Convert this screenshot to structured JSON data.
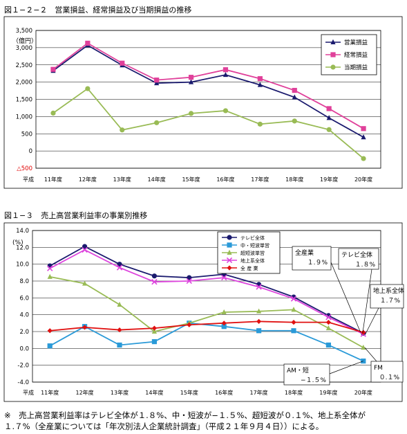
{
  "charts": [
    {
      "title": "図１−２−２　営業損益、経常損益及び当期損益の推移",
      "chart_data": {
        "type": "line",
        "unit_label": "（億円）",
        "x_prefix": "平成",
        "categories": [
          "11年度",
          "12年度",
          "13年度",
          "14年度",
          "15年度",
          "16年度",
          "17年度",
          "18年度",
          "19年度",
          "20年度"
        ],
        "ylim": [
          -500,
          3500
        ],
        "yticks": [
          {
            "v": 3500,
            "label": "3,500"
          },
          {
            "v": 3000,
            "label": "3,000"
          },
          {
            "v": 2500,
            "label": "2,500"
          },
          {
            "v": 2000,
            "label": "2,000"
          },
          {
            "v": 1500,
            "label": "1,500"
          },
          {
            "v": 1000,
            "label": "1,000"
          },
          {
            "v": 500,
            "label": "500"
          },
          {
            "v": 0,
            "label": "0"
          },
          {
            "v": -500,
            "label": "△500",
            "color": "#e00000"
          }
        ],
        "legend_position": "top-right",
        "series": [
          {
            "name": "営業損益",
            "color": "#1a1a6e",
            "marker": "triangle",
            "values": [
              2330,
              3070,
              2490,
              1970,
              2000,
              2210,
              1920,
              1560,
              960,
              400
            ]
          },
          {
            "name": "経常損益",
            "color": "#e0409a",
            "marker": "square",
            "values": [
              2370,
              3130,
              2550,
              2060,
              2140,
              2360,
              2100,
              1760,
              1230,
              650
            ]
          },
          {
            "name": "当期損益",
            "color": "#99bb55",
            "marker": "circle",
            "values": [
              1100,
              1810,
              610,
              820,
              1090,
              1170,
              780,
              870,
              620,
              -220
            ]
          }
        ]
      }
    },
    {
      "title": "図１−３　売上高営業利益率の事業別推移",
      "chart_data": {
        "type": "line",
        "unit_label": "(%)",
        "x_prefix": "平成",
        "categories": [
          "11年度",
          "12年度",
          "13年度",
          "14年度",
          "15年度",
          "16年度",
          "17年度",
          "18年度",
          "19年度",
          "20年度"
        ],
        "ylim": [
          -4,
          14
        ],
        "yticks": [
          {
            "v": 14,
            "label": "14.0"
          },
          {
            "v": 12,
            "label": "12.0"
          },
          {
            "v": 10,
            "label": "10.0"
          },
          {
            "v": 8,
            "label": "8.0"
          },
          {
            "v": 6,
            "label": "6.0"
          },
          {
            "v": 4,
            "label": "4.0"
          },
          {
            "v": 2,
            "label": "2.0"
          },
          {
            "v": 0,
            "label": "0.0"
          },
          {
            "v": -2,
            "label": "-2.0"
          },
          {
            "v": -4,
            "label": "-4.0"
          }
        ],
        "legend_position": "top-left",
        "series": [
          {
            "name": "テレビ全体",
            "color": "#1a1a6e",
            "marker": "circle",
            "values": [
              9.8,
              12.1,
              10.0,
              8.6,
              8.4,
              8.8,
              7.6,
              6.1,
              3.9,
              1.8
            ]
          },
          {
            "name": "中・短波単営",
            "color": "#2a9ad8",
            "marker": "square",
            "values": [
              0.3,
              2.6,
              0.4,
              0.8,
              3.0,
              2.6,
              2.1,
              2.1,
              0.4,
              -1.5
            ]
          },
          {
            "name": "超短波単営",
            "color": "#99bb55",
            "marker": "triangle",
            "values": [
              8.5,
              7.7,
              5.2,
              2.0,
              3.0,
              4.3,
              4.4,
              4.6,
              2.4,
              0.1
            ]
          },
          {
            "name": "地上系全体",
            "color": "#dd44dd",
            "marker": "x",
            "values": [
              9.5,
              11.7,
              9.6,
              7.9,
              8.0,
              8.4,
              7.3,
              5.9,
              3.7,
              1.7
            ]
          },
          {
            "name": "全 産 業",
            "color": "#e01010",
            "marker": "diamond",
            "values": [
              2.1,
              2.5,
              2.2,
              2.4,
              2.8,
              3.0,
              3.2,
              3.1,
              3.1,
              1.9
            ]
          }
        ],
        "annotations": [
          {
            "line1": "全産業",
            "line2": "１.９%"
          },
          {
            "line1": "テレビ全体",
            "line2": "１.８%"
          },
          {
            "line1": "地上系全体",
            "line2": "１.７%"
          },
          {
            "line1": "AM・短",
            "line2": "−１.５%"
          },
          {
            "line1": "FM",
            "line2": "０.１%"
          }
        ]
      }
    }
  ],
  "footnote": {
    "line1": "※　売上高営業利益率はテレビ全体が１.８%、中・短波が−１.５%、超短波が０.１%、地上系全体が",
    "line2": "１.７%（全産業については「年次別法人企業統計調査」（平成２１年９月４日））による。"
  }
}
